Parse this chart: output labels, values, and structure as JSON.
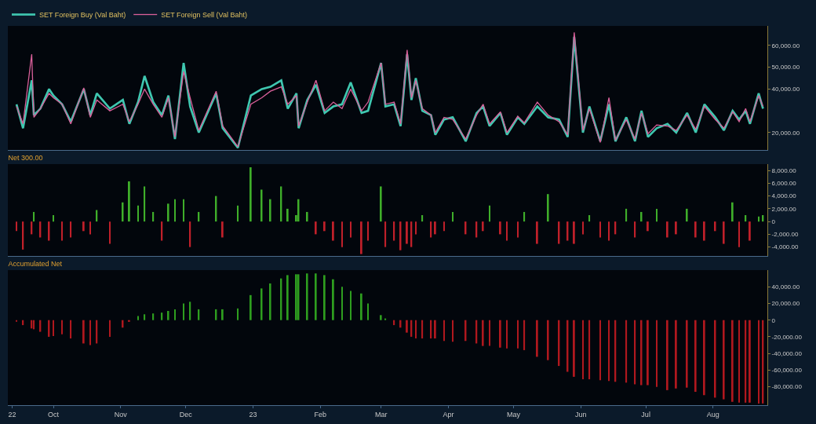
{
  "chart_data": [
    {
      "type": "line",
      "x": [
        "2022-09-14",
        "2022-09-17",
        "2022-09-21",
        "2022-09-22",
        "2022-09-25",
        "2022-09-29",
        "2022-10-01",
        "2022-10-05",
        "2022-10-09",
        "2022-10-15",
        "2022-10-18",
        "2022-10-21",
        "2022-10-27",
        "2022-11-02",
        "2022-11-05",
        "2022-11-09",
        "2022-11-12",
        "2022-11-16",
        "2022-11-20",
        "2022-11-23",
        "2022-11-26",
        "2022-11-30",
        "2022-12-03",
        "2022-12-07",
        "2022-12-15",
        "2022-12-18",
        "2022-12-25",
        "2022-12-31",
        "2023-01-05",
        "2023-01-09",
        "2023-01-14",
        "2023-01-17",
        "2023-01-21",
        "2023-01-22",
        "2023-01-26",
        "2023-01-30",
        "2023-02-03",
        "2023-02-07",
        "2023-02-11",
        "2023-02-15",
        "2023-02-20",
        "2023-02-23",
        "2023-03-01",
        "2023-03-03",
        "2023-03-07",
        "2023-03-10",
        "2023-03-13",
        "2023-03-15",
        "2023-03-17",
        "2023-03-20",
        "2023-03-24",
        "2023-03-26",
        "2023-03-30",
        "2023-04-03",
        "2023-04-09",
        "2023-04-14",
        "2023-04-17",
        "2023-04-20",
        "2023-04-25",
        "2023-04-28",
        "2023-05-03",
        "2023-05-06",
        "2023-05-12",
        "2023-05-17",
        "2023-05-22",
        "2023-05-26",
        "2023-05-29",
        "2023-06-02",
        "2023-06-05",
        "2023-06-10",
        "2023-06-14",
        "2023-06-17",
        "2023-06-22",
        "2023-06-26",
        "2023-06-29",
        "2023-07-02",
        "2023-07-06",
        "2023-07-11",
        "2023-07-15",
        "2023-07-20",
        "2023-07-24",
        "2023-07-28",
        "2023-08-02",
        "2023-08-06",
        "2023-08-10",
        "2023-08-13",
        "2023-08-16",
        "2023-08-18",
        "2023-08-22",
        "2023-08-24"
      ],
      "series": [
        {
          "name": "SET Foreign Buy (Val Baht)",
          "color": "#3fc7b0",
          "values": [
            33000,
            22000,
            44000,
            28000,
            31000,
            40000,
            37000,
            33000,
            25000,
            40000,
            28000,
            38000,
            31000,
            35000,
            24000,
            34000,
            46000,
            34000,
            28000,
            37000,
            17000,
            52000,
            32000,
            20000,
            38000,
            22000,
            13000,
            37000,
            40000,
            41000,
            44000,
            31000,
            38000,
            22000,
            35000,
            42000,
            29000,
            32000,
            33000,
            43000,
            29000,
            30000,
            52000,
            32000,
            33000,
            23000,
            56000,
            35000,
            45000,
            30000,
            28000,
            19000,
            26000,
            27000,
            16000,
            29000,
            32000,
            23000,
            29000,
            19000,
            27000,
            24000,
            32000,
            27000,
            26000,
            18000,
            64000,
            20000,
            32000,
            16000,
            33000,
            16000,
            27000,
            16000,
            30000,
            18000,
            22000,
            24000,
            20000,
            29000,
            20000,
            33000,
            27000,
            21000,
            30000,
            26000,
            30000,
            24000,
            38000,
            31000
          ]
        },
        {
          "name": "SET Foreign Sell (Val Baht)",
          "color": "#d9609a",
          "values": [
            32000,
            24000,
            56000,
            27000,
            31000,
            38000,
            36000,
            33000,
            24000,
            40500,
            27000,
            35000,
            30000,
            33000,
            25000,
            33000,
            40000,
            33000,
            27000,
            36000,
            18000,
            48000,
            36000,
            21000,
            39000,
            23000,
            13500,
            33000,
            36000,
            39000,
            41000,
            33000,
            37000,
            23000,
            34000,
            44000,
            30000,
            34000,
            31000,
            40000,
            30000,
            34000,
            52000,
            33000,
            34000,
            24000,
            58000,
            36000,
            44000,
            31000,
            28000,
            20000,
            27000,
            26000,
            17000,
            28000,
            33000,
            24000,
            29500,
            20000,
            27500,
            24500,
            34000,
            28000,
            25000,
            19000,
            66000,
            21000,
            31000,
            15500,
            36000,
            16500,
            26000,
            17000,
            29000,
            19500,
            23500,
            23000,
            21000,
            28000,
            21500,
            32000,
            26000,
            22000,
            29500,
            25000,
            31000,
            25000,
            37000,
            32000
          ]
        }
      ],
      "xlim": [
        "2022-09-10",
        "2023-08-26"
      ],
      "ylim": [
        12000,
        69000
      ],
      "yticks": [
        {
          "value": 20000,
          "label": "20,000.00"
        },
        {
          "value": 40000,
          "label": "40,000.00"
        },
        {
          "value": 50000,
          "label": "50,000.00"
        },
        {
          "value": 60000,
          "label": "60,000.00"
        }
      ],
      "tick_labels": "y",
      "legend": "top left",
      "grid": false
    },
    {
      "type": "bar",
      "title": "Net 300.00",
      "x": [
        "2022-09-14",
        "2022-09-17",
        "2022-09-21",
        "2022-09-22",
        "2022-09-25",
        "2022-09-29",
        "2022-10-01",
        "2022-10-05",
        "2022-10-09",
        "2022-10-15",
        "2022-10-18",
        "2022-10-21",
        "2022-10-27",
        "2022-11-02",
        "2022-11-05",
        "2022-11-09",
        "2022-11-12",
        "2022-11-16",
        "2022-11-20",
        "2022-11-23",
        "2022-11-26",
        "2022-11-30",
        "2022-12-03",
        "2022-12-07",
        "2022-12-15",
        "2022-12-18",
        "2022-12-25",
        "2022-12-31",
        "2023-01-05",
        "2023-01-09",
        "2023-01-14",
        "2023-01-17",
        "2023-01-21",
        "2023-01-22",
        "2023-01-26",
        "2023-01-30",
        "2023-02-03",
        "2023-02-07",
        "2023-02-11",
        "2023-02-15",
        "2023-02-20",
        "2023-02-23",
        "2023-03-01",
        "2023-03-03",
        "2023-03-07",
        "2023-03-10",
        "2023-03-13",
        "2023-03-15",
        "2023-03-17",
        "2023-03-20",
        "2023-03-24",
        "2023-03-26",
        "2023-03-30",
        "2023-04-03",
        "2023-04-09",
        "2023-04-14",
        "2023-04-17",
        "2023-04-20",
        "2023-04-25",
        "2023-04-28",
        "2023-05-03",
        "2023-05-06",
        "2023-05-12",
        "2023-05-17",
        "2023-05-22",
        "2023-05-26",
        "2023-05-29",
        "2023-06-02",
        "2023-06-05",
        "2023-06-10",
        "2023-06-14",
        "2023-06-17",
        "2023-06-22",
        "2023-06-26",
        "2023-06-29",
        "2023-07-02",
        "2023-07-06",
        "2023-07-11",
        "2023-07-15",
        "2023-07-20",
        "2023-07-24",
        "2023-07-28",
        "2023-08-02",
        "2023-08-06",
        "2023-08-10",
        "2023-08-13",
        "2023-08-16",
        "2023-08-18",
        "2023-08-22",
        "2023-08-24"
      ],
      "values": [
        -1500,
        -4400,
        -2000,
        1500,
        -2500,
        -3000,
        1000,
        -3000,
        -2500,
        -1500,
        -2000,
        1800,
        -3500,
        3000,
        6300,
        2500,
        5500,
        1500,
        -3000,
        2800,
        3500,
        3500,
        -4000,
        1500,
        4000,
        -2500,
        2500,
        8500,
        5000,
        3500,
        5500,
        2000,
        1000,
        3500,
        1500,
        -2000,
        -1500,
        -3000,
        -4000,
        -2500,
        -5100,
        -3000,
        5500,
        -4000,
        -3000,
        -4500,
        -3500,
        -4000,
        -2000,
        1000,
        -2500,
        -2000,
        -1500,
        1500,
        -2000,
        -2500,
        -1500,
        2500,
        -2000,
        -3000,
        -2500,
        1500,
        -3500,
        4300,
        -3500,
        -3000,
        -3500,
        -2000,
        1000,
        -2500,
        -3000,
        -2000,
        2000,
        -2500,
        1500,
        -1500,
        2000,
        -2500,
        -2000,
        2000,
        -2500,
        -3000,
        -1500,
        -3500,
        3000,
        -4000,
        1000,
        -3000,
        800,
        1000
      ],
      "colors": [
        "#c0202a",
        "#c0202a",
        "#c0202a",
        "#3fae2a",
        "#c0202a",
        "#c0202a",
        "#3fae2a",
        "#c0202a",
        "#c0202a",
        "#c0202a",
        "#c0202a",
        "#3fae2a",
        "#c0202a",
        "#3fae2a",
        "#3fae2a",
        "#3fae2a",
        "#3fae2a",
        "#3fae2a",
        "#c0202a",
        "#3fae2a",
        "#3fae2a",
        "#3fae2a",
        "#c0202a",
        "#3fae2a",
        "#3fae2a",
        "#c0202a",
        "#3fae2a",
        "#3fae2a",
        "#3fae2a",
        "#3fae2a",
        "#3fae2a",
        "#3fae2a",
        "#3fae2a",
        "#3fae2a",
        "#3fae2a",
        "#c0202a",
        "#c0202a",
        "#c0202a",
        "#c0202a",
        "#c0202a",
        "#c0202a",
        "#c0202a",
        "#3fae2a",
        "#c0202a",
        "#c0202a",
        "#c0202a",
        "#c0202a",
        "#c0202a",
        "#c0202a",
        "#3fae2a",
        "#c0202a",
        "#c0202a",
        "#c0202a",
        "#3fae2a",
        "#c0202a",
        "#c0202a",
        "#c0202a",
        "#3fae2a",
        "#c0202a",
        "#c0202a",
        "#c0202a",
        "#3fae2a",
        "#c0202a",
        "#3fae2a",
        "#c0202a",
        "#c0202a",
        "#c0202a",
        "#c0202a",
        "#3fae2a",
        "#c0202a",
        "#c0202a",
        "#c0202a",
        "#3fae2a",
        "#c0202a",
        "#3fae2a",
        "#c0202a",
        "#3fae2a",
        "#c0202a",
        "#c0202a",
        "#3fae2a",
        "#c0202a",
        "#c0202a",
        "#c0202a",
        "#c0202a",
        "#3fae2a",
        "#c0202a",
        "#3fae2a",
        "#c0202a",
        "#3fae2a",
        "#3fae2a"
      ],
      "xlim": [
        "2022-09-10",
        "2023-08-26"
      ],
      "ylim": [
        -5400,
        9000
      ],
      "yticks": [
        {
          "value": -4000,
          "label": "-4,000.00"
        },
        {
          "value": -2000,
          "label": "-2,000.00"
        },
        0,
        {
          "value": 2000,
          "label": "2,000.00"
        },
        {
          "value": 4000,
          "label": "4,000.00"
        },
        {
          "value": 6000,
          "label": "6,000.00"
        },
        {
          "value": 8000,
          "label": "8,000.00"
        }
      ],
      "tick_labels": "y",
      "grid": false
    },
    {
      "type": "bar",
      "title": "Accumulated Net",
      "x": [
        "2022-09-14",
        "2022-09-17",
        "2022-09-21",
        "2022-09-22",
        "2022-09-25",
        "2022-09-29",
        "2022-10-01",
        "2022-10-05",
        "2022-10-09",
        "2022-10-15",
        "2022-10-18",
        "2022-10-21",
        "2022-10-27",
        "2022-11-02",
        "2022-11-05",
        "2022-11-09",
        "2022-11-12",
        "2022-11-16",
        "2022-11-20",
        "2022-11-23",
        "2022-11-26",
        "2022-11-30",
        "2022-12-03",
        "2022-12-07",
        "2022-12-15",
        "2022-12-18",
        "2022-12-25",
        "2022-12-31",
        "2023-01-05",
        "2023-01-09",
        "2023-01-14",
        "2023-01-17",
        "2023-01-21",
        "2023-01-22",
        "2023-01-26",
        "2023-01-30",
        "2023-02-03",
        "2023-02-07",
        "2023-02-11",
        "2023-02-15",
        "2023-02-20",
        "2023-02-23",
        "2023-03-01",
        "2023-03-03",
        "2023-03-07",
        "2023-03-10",
        "2023-03-13",
        "2023-03-15",
        "2023-03-17",
        "2023-03-20",
        "2023-03-24",
        "2023-03-26",
        "2023-03-30",
        "2023-04-03",
        "2023-04-09",
        "2023-04-14",
        "2023-04-17",
        "2023-04-20",
        "2023-04-25",
        "2023-04-28",
        "2023-05-03",
        "2023-05-06",
        "2023-05-12",
        "2023-05-17",
        "2023-05-22",
        "2023-05-26",
        "2023-05-29",
        "2023-06-02",
        "2023-06-05",
        "2023-06-10",
        "2023-06-14",
        "2023-06-17",
        "2023-06-22",
        "2023-06-26",
        "2023-06-29",
        "2023-07-02",
        "2023-07-06",
        "2023-07-11",
        "2023-07-15",
        "2023-07-20",
        "2023-07-24",
        "2023-07-28",
        "2023-08-02",
        "2023-08-06",
        "2023-08-10",
        "2023-08-13",
        "2023-08-16",
        "2023-08-18",
        "2023-08-22",
        "2023-08-24"
      ],
      "values": [
        -2000,
        -6000,
        -10000,
        -11000,
        -14000,
        -20000,
        -19000,
        -17000,
        -22000,
        -28000,
        -30000,
        -28000,
        -20000,
        -9000,
        -2000,
        5000,
        7000,
        8000,
        9000,
        11000,
        13000,
        20000,
        22000,
        13000,
        13000,
        13000,
        14000,
        30000,
        38000,
        44000,
        50000,
        54000,
        55000,
        55000,
        56000,
        56000,
        54000,
        49000,
        40000,
        35000,
        32000,
        20000,
        6000,
        2000,
        -6000,
        -9000,
        -15000,
        -20000,
        -22000,
        -22000,
        -22000,
        -22000,
        -25000,
        -26000,
        -25000,
        -28000,
        -31000,
        -31000,
        -33000,
        -34000,
        -34000,
        -36000,
        -44000,
        -48000,
        -55000,
        -62000,
        -68000,
        -71000,
        -71000,
        -72000,
        -73000,
        -74000,
        -75000,
        -77000,
        -78000,
        -78000,
        -80000,
        -84000,
        -82000,
        -81000,
        -86000,
        -90000,
        -93000,
        -95000,
        -98000,
        -99000,
        -99000,
        -99000,
        -100000,
        -100000
      ],
      "colors": [
        "#b0181e",
        "#b0181e",
        "#b0181e",
        "#b0181e",
        "#b0181e",
        "#b0181e",
        "#b0181e",
        "#b0181e",
        "#b0181e",
        "#b0181e",
        "#b0181e",
        "#b0181e",
        "#b0181e",
        "#b0181e",
        "#b0181e",
        "#2e9e1f",
        "#2e9e1f",
        "#2e9e1f",
        "#2e9e1f",
        "#2e9e1f",
        "#2e9e1f",
        "#2e9e1f",
        "#2e9e1f",
        "#2e9e1f",
        "#2e9e1f",
        "#2e9e1f",
        "#2e9e1f",
        "#2e9e1f",
        "#2e9e1f",
        "#2e9e1f",
        "#2e9e1f",
        "#2e9e1f",
        "#2e9e1f",
        "#2e9e1f",
        "#2e9e1f",
        "#2e9e1f",
        "#2e9e1f",
        "#2e9e1f",
        "#2e9e1f",
        "#2e9e1f",
        "#2e9e1f",
        "#2e9e1f",
        "#2e9e1f",
        "#2e9e1f",
        "#b0181e",
        "#b0181e",
        "#b0181e",
        "#b0181e",
        "#b0181e",
        "#b0181e",
        "#b0181e",
        "#b0181e",
        "#b0181e",
        "#b0181e",
        "#b0181e",
        "#b0181e",
        "#b0181e",
        "#b0181e",
        "#b0181e",
        "#b0181e",
        "#b0181e",
        "#b0181e",
        "#b0181e",
        "#b0181e",
        "#b0181e",
        "#b0181e",
        "#b0181e",
        "#b0181e",
        "#b0181e",
        "#b0181e",
        "#b0181e",
        "#b0181e",
        "#b0181e",
        "#b0181e",
        "#b0181e",
        "#b0181e",
        "#b0181e",
        "#b0181e",
        "#b0181e",
        "#b0181e",
        "#b0181e",
        "#b0181e",
        "#b0181e",
        "#b0181e",
        "#b0181e",
        "#b0181e",
        "#b0181e",
        "#b0181e",
        "#b0181e",
        "#b0181e"
      ],
      "xlim": [
        "2022-09-10",
        "2023-08-26"
      ],
      "xticks": [
        {
          "value": "2022-09-12",
          "label": "22"
        },
        {
          "value": "2022-10-01",
          "label": "Oct"
        },
        {
          "value": "2022-11-01",
          "label": "Nov"
        },
        {
          "value": "2022-12-01",
          "label": "Dec"
        },
        {
          "value": "2023-01-01",
          "label": "23"
        },
        {
          "value": "2023-02-01",
          "label": "Feb"
        },
        {
          "value": "2023-03-01",
          "label": "Mar"
        },
        {
          "value": "2023-04-01",
          "label": "Apr"
        },
        {
          "value": "2023-05-01",
          "label": "May"
        },
        {
          "value": "2023-06-01",
          "label": "Jun"
        },
        {
          "value": "2023-07-01",
          "label": "Jul"
        },
        {
          "value": "2023-08-01",
          "label": "Aug"
        }
      ],
      "ylim": [
        -102000,
        60000
      ],
      "yticks": [
        {
          "value": -80000,
          "label": "-80,000.00"
        },
        {
          "value": -60000,
          "label": "-60,000.00"
        },
        {
          "value": -40000,
          "label": "-40,000.00"
        },
        {
          "value": -20000,
          "label": "-20,000.00"
        },
        0,
        {
          "value": 20000,
          "label": "20,000.00"
        },
        {
          "value": 40000,
          "label": "40,000.00"
        }
      ],
      "grid": false
    }
  ]
}
